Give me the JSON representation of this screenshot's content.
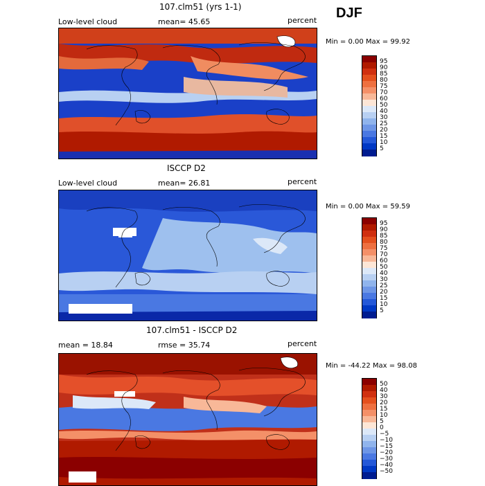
{
  "season": "DJF",
  "panels": [
    {
      "title": "107.clm51 (yrs 1-1)",
      "left_label": "Low-level cloud",
      "center_label": "mean=  45.65",
      "right_label": "percent",
      "stats": "Min =    0.00 Max =   99.92",
      "colorbar": {
        "labels": [
          "95",
          "90",
          "85",
          "80",
          "75",
          "70",
          "60",
          "50",
          "40",
          "30",
          "25",
          "20",
          "15",
          "10",
          "5"
        ],
        "colors": [
          "#8b0000",
          "#b01a00",
          "#d03010",
          "#e4501e",
          "#ee7040",
          "#f49068",
          "#f8b898",
          "#fde6d6",
          "#dce8f8",
          "#b8d0f2",
          "#90b4ec",
          "#6e96e6",
          "#4a78e2",
          "#2458d8",
          "#0038c4",
          "#001c90"
        ]
      }
    },
    {
      "title": "ISCCP D2",
      "left_label": "Low-level cloud",
      "center_label": "mean=  26.81",
      "right_label": "percent",
      "stats": "Min =    0.00 Max =   59.59",
      "colorbar": {
        "labels": [
          "95",
          "90",
          "85",
          "80",
          "75",
          "70",
          "60",
          "50",
          "40",
          "30",
          "25",
          "20",
          "15",
          "10",
          "5"
        ],
        "colors": [
          "#8b0000",
          "#b01a00",
          "#d03010",
          "#e4501e",
          "#ee7040",
          "#f49068",
          "#f8b898",
          "#fde6d6",
          "#dce8f8",
          "#b8d0f2",
          "#90b4ec",
          "#6e96e6",
          "#4a78e2",
          "#2458d8",
          "#0038c4",
          "#001c90"
        ]
      }
    },
    {
      "title": "107.clm51 - ISCCP D2",
      "left_label": "mean =  18.84",
      "center_label": "rmse =  35.74",
      "right_label": "percent",
      "stats": "Min = -44.22 Max =   98.08",
      "colorbar": {
        "labels": [
          "50",
          "40",
          "30",
          "20",
          "15",
          "10",
          "5",
          "0",
          "−5",
          "−10",
          "−15",
          "−20",
          "−30",
          "−40",
          "−50"
        ],
        "colors": [
          "#8b0000",
          "#b01a00",
          "#d03010",
          "#e4501e",
          "#ee7040",
          "#f49068",
          "#f8b898",
          "#fde6d6",
          "#dce8f8",
          "#b8d0f2",
          "#90b4ec",
          "#6e96e6",
          "#4a78e2",
          "#2458d8",
          "#0038c4",
          "#001c90"
        ]
      }
    }
  ]
}
